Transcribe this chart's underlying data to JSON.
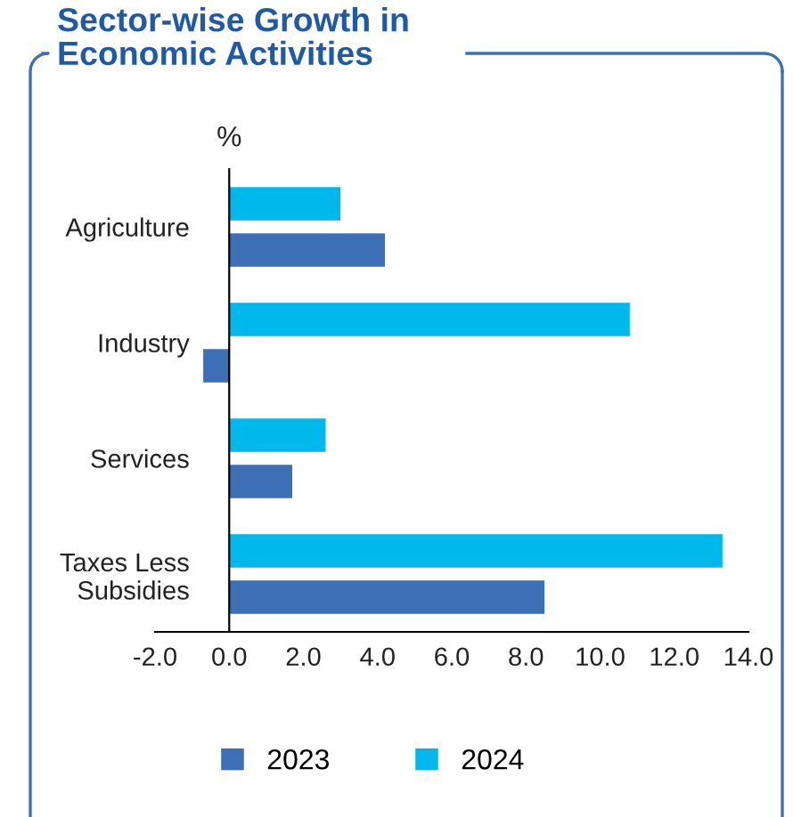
{
  "chart_data": {
    "type": "bar",
    "orientation": "horizontal",
    "title": "Sector-wise Growth in\nEconomic Activities",
    "xlabel": "%",
    "categories": [
      "Agriculture",
      "Industry",
      "Services",
      "Taxes Less\nSubsidies"
    ],
    "series": [
      {
        "name": "2023",
        "color": "#3c6fb6",
        "values": [
          4.2,
          -0.7,
          1.7,
          8.5
        ]
      },
      {
        "name": "2024",
        "color": "#00b8ec",
        "values": [
          3.0,
          10.8,
          2.6,
          13.3
        ]
      }
    ],
    "xlim": [
      -2.0,
      14.0
    ],
    "xticks": [
      {
        "value": -2,
        "label": "-2.0"
      },
      {
        "value": 0,
        "label": "0.0"
      },
      {
        "value": 2,
        "label": "2.0"
      },
      {
        "value": 4,
        "label": "4.0"
      },
      {
        "value": 6,
        "label": "6.0"
      },
      {
        "value": 8,
        "label": "8.0"
      },
      {
        "value": 10,
        "label": "10.0"
      },
      {
        "value": 12,
        "label": "12.0"
      },
      {
        "value": 14,
        "label": "14.0"
      }
    ],
    "legend": "bottom",
    "grid": false
  }
}
